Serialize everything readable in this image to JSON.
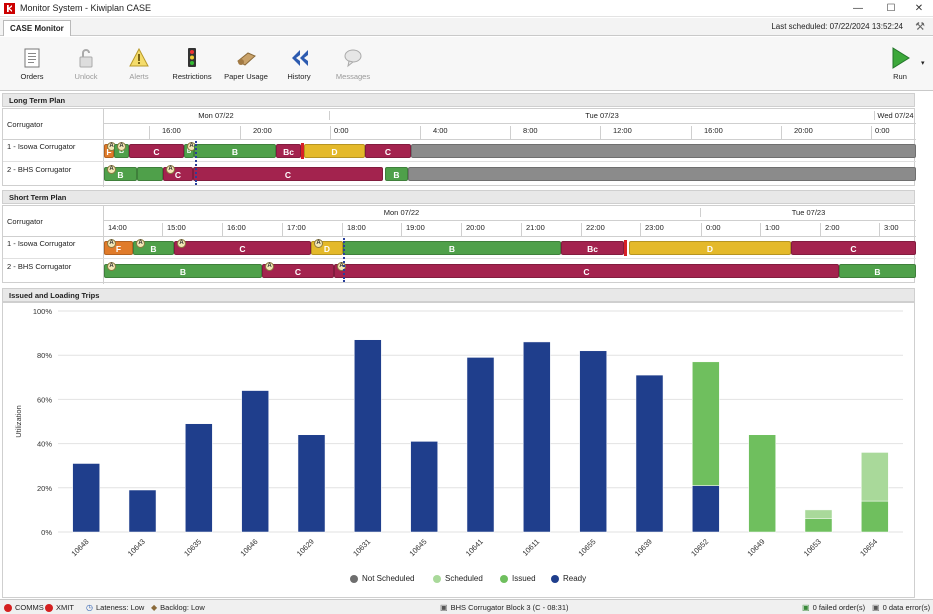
{
  "window": {
    "title": "Monitor System - Kiwiplan CASE",
    "minimize": "—",
    "maximize": "☐",
    "close": "✕"
  },
  "tabbar": {
    "tab": "CASE Monitor",
    "last_scheduled": "Last scheduled: 07/22/2024 13:52:24"
  },
  "toolbar": {
    "items": [
      {
        "label": "Orders",
        "icon": "orders-icon",
        "enabled": true
      },
      {
        "label": "Unlock",
        "icon": "unlock-icon",
        "enabled": false
      },
      {
        "label": "Alerts",
        "icon": "alerts-icon",
        "enabled": false
      },
      {
        "label": "Restrictions",
        "icon": "restrictions-icon",
        "enabled": true
      },
      {
        "label": "Paper Usage",
        "icon": "paper-usage-icon",
        "enabled": true
      },
      {
        "label": "History",
        "icon": "history-icon",
        "enabled": true
      },
      {
        "label": "Messages",
        "icon": "messages-icon",
        "enabled": false
      }
    ],
    "run": "Run"
  },
  "colors": {
    "A": "#e07b2a",
    "B": "#4fa04a",
    "C": "#a3234e",
    "D": "#e4b92a",
    "grey": "#8b8b8b",
    "ready": "#1f3e8c",
    "issued": "#6fbf5e",
    "scheduled": "#a9d99a",
    "not_scheduled": "#6e6e6e"
  },
  "long_term": {
    "title": "Long Term Plan",
    "col_header": "Corrugator",
    "days": [
      "Mon 07/22",
      "Tue 07/23",
      "Wed 07/24"
    ],
    "hours": [
      "16:00",
      "20:00",
      "0:00",
      "4:00",
      "8:00",
      "12:00",
      "16:00",
      "20:00",
      "0:00"
    ],
    "rows": [
      {
        "label": "1 - Isowa Corrugator",
        "segments": [
          "F",
          "B",
          "C",
          "B",
          "B",
          "Bc",
          "D",
          "C"
        ]
      },
      {
        "label": "2 - BHS Corrugator",
        "segments": [
          "B",
          "C",
          "C",
          "B"
        ]
      }
    ]
  },
  "short_term": {
    "title": "Short Term Plan",
    "col_header": "Corrugator",
    "days": [
      "Mon 07/22",
      "Tue 07/23"
    ],
    "hours": [
      "14:00",
      "15:00",
      "16:00",
      "17:00",
      "18:00",
      "19:00",
      "20:00",
      "21:00",
      "22:00",
      "23:00",
      "0:00",
      "1:00",
      "2:00",
      "3:00"
    ],
    "rows": [
      {
        "label": "1 - Isowa Corrugator",
        "segments": [
          "F",
          "B",
          "C",
          "D",
          "B",
          "Bc",
          "D",
          "C"
        ]
      },
      {
        "label": "2 - BHS Corrugator",
        "segments": [
          "B",
          "C",
          "C",
          "B"
        ]
      }
    ]
  },
  "trips": {
    "title": "Issued and Loading Trips"
  },
  "chart_data": {
    "type": "bar",
    "stacked": true,
    "ylabel": "Utilization",
    "ylim": [
      0,
      100
    ],
    "yticks": [
      "0%",
      "20%",
      "40%",
      "60%",
      "80%",
      "100%"
    ],
    "categories": [
      "10648",
      "10643",
      "10635",
      "10646",
      "10629",
      "10631",
      "10645",
      "10641",
      "10611",
      "10655",
      "10639",
      "10652",
      "10649",
      "10653",
      "10654"
    ],
    "series": [
      {
        "name": "Not Scheduled",
        "values": [
          0,
          0,
          0,
          0,
          0,
          0,
          0,
          0,
          0,
          0,
          0,
          0,
          0,
          0,
          0
        ]
      },
      {
        "name": "Ready",
        "values": [
          31,
          19,
          49,
          64,
          44,
          87,
          41,
          79,
          86,
          82,
          71,
          21,
          0,
          0,
          0
        ]
      },
      {
        "name": "Issued",
        "values": [
          0,
          0,
          0,
          0,
          0,
          0,
          0,
          0,
          0,
          0,
          0,
          56,
          44,
          6,
          14
        ]
      },
      {
        "name": "Scheduled",
        "values": [
          0,
          0,
          0,
          0,
          0,
          0,
          0,
          0,
          0,
          0,
          0,
          0,
          0,
          4,
          22
        ]
      }
    ],
    "legend": [
      "Not Scheduled",
      "Scheduled",
      "Issued",
      "Ready"
    ],
    "legend_position": "bottom",
    "grid": true
  },
  "status": {
    "comms": "COMMS",
    "xmit": "XMIT",
    "lateness": "Lateness: Low",
    "backlog": "Backlog: Low",
    "block": "BHS Corrugator Block 3 (C - 08:31)",
    "failed": "0 failed order(s)",
    "errors": "0 data error(s)"
  }
}
